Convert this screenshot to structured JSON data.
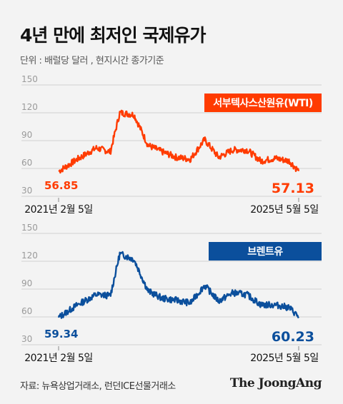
{
  "title": "4년 만에 최저인 국제유가",
  "subtitle": "단위 : 배럴당 달러 , 현지시간 종가기준",
  "source": "자료: 뉴욕상업거래소, 런던ICE선물거래소",
  "logo": "The JoongAng",
  "chart_data": [
    {
      "type": "line",
      "series_label": "서부텍사스산원유(WTI)",
      "color": "#ff3b00",
      "ylim": [
        30,
        150
      ],
      "yticks": [
        "150",
        "120",
        "90",
        "60",
        "30"
      ],
      "start_label": "2021년 2월 5일",
      "end_label": "2025년 5월 5일",
      "start_value": "56.85",
      "end_value": "57.13",
      "x": [
        "2021-02",
        "2021-06",
        "2021-10",
        "2022-01",
        "2022-03",
        "2022-06",
        "2022-09",
        "2022-12",
        "2023-03",
        "2023-06",
        "2023-09",
        "2023-12",
        "2024-03",
        "2024-06",
        "2024-09",
        "2024-12",
        "2025-03",
        "2025-05"
      ],
      "values": [
        56.85,
        70,
        82,
        78,
        120,
        118,
        85,
        78,
        72,
        70,
        91,
        72,
        80,
        80,
        68,
        71,
        68,
        57.13
      ]
    },
    {
      "type": "line",
      "series_label": "브렌트유",
      "color": "#0b4f9c",
      "ylim": [
        30,
        150
      ],
      "yticks": [
        "150",
        "120",
        "90",
        "60",
        "30"
      ],
      "start_label": "2021년 2월 5일",
      "end_label": "2025년 5월 5일",
      "start_value": "59.34",
      "end_value": "60.23",
      "x": [
        "2021-02",
        "2021-06",
        "2021-10",
        "2022-01",
        "2022-03",
        "2022-06",
        "2022-09",
        "2022-12",
        "2023-03",
        "2023-06",
        "2023-09",
        "2023-12",
        "2024-03",
        "2024-06",
        "2024-09",
        "2024-12",
        "2025-03",
        "2025-05"
      ],
      "values": [
        59.34,
        73,
        84,
        83,
        128,
        122,
        88,
        80,
        78,
        75,
        94,
        77,
        86,
        84,
        73,
        73,
        70,
        60.23
      ]
    }
  ]
}
